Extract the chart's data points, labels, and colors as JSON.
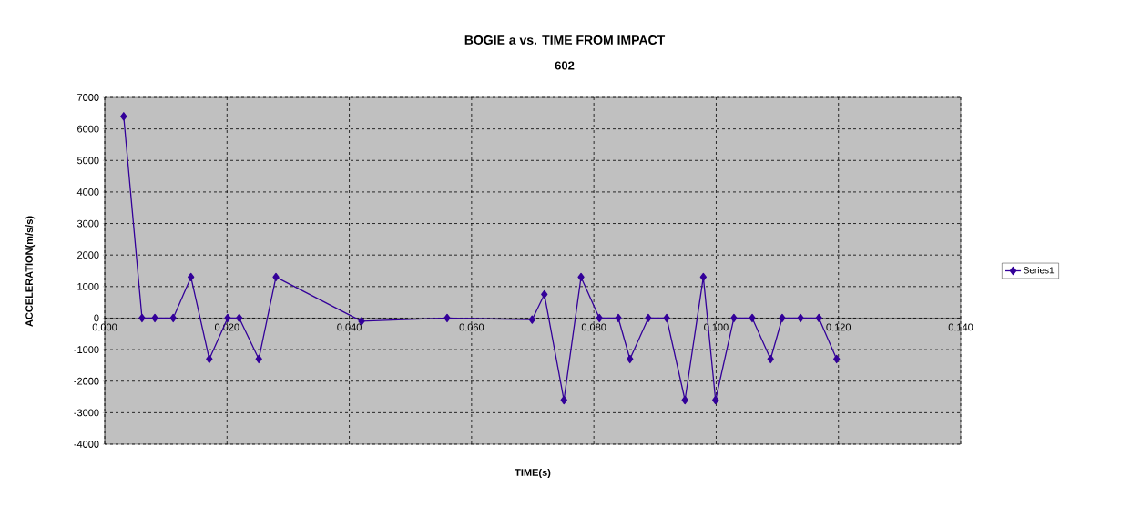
{
  "chart_data": {
    "type": "line",
    "title": "BOGIE a vs. TIME FROM IMPACT",
    "subtitle": "602",
    "xlabel": "TIME(s)",
    "ylabel": "ACCELERATION(m/s/s)",
    "series": [
      {
        "name": "Series1",
        "color": "#330099",
        "x": [
          0.0031,
          0.0061,
          0.0082,
          0.0112,
          0.0141,
          0.0171,
          0.0201,
          0.022,
          0.0252,
          0.028,
          0.042,
          0.056,
          0.0699,
          0.0719,
          0.0751,
          0.0779,
          0.0809,
          0.084,
          0.0859,
          0.0889,
          0.0919,
          0.0949,
          0.0979,
          0.0999,
          0.1029,
          0.1059,
          0.1089,
          0.1108,
          0.1138,
          0.1168,
          0.1197
        ],
        "values": [
          6400,
          0,
          0,
          0,
          1300,
          -1300,
          0,
          0,
          -1300,
          1300,
          -100,
          0,
          -50,
          750,
          -2600,
          1300,
          0,
          0,
          -1300,
          0,
          0,
          -2600,
          1300,
          -2600,
          0,
          0,
          -1300,
          0,
          0,
          0,
          -1300
        ]
      }
    ],
    "xlim": [
      0,
      0.14
    ],
    "xticks": [
      {
        "value": 0,
        "label": "0.000"
      },
      {
        "value": 0.02,
        "label": "0.020"
      },
      {
        "value": 0.04,
        "label": "0.040"
      },
      {
        "value": 0.06,
        "label": "0.060"
      },
      {
        "value": 0.08,
        "label": "0.080"
      },
      {
        "value": 0.1,
        "label": "0.100"
      },
      {
        "value": 0.12,
        "label": "0.120"
      },
      {
        "value": 0.14,
        "label": "0.140"
      }
    ],
    "ylim": [
      -4000,
      7000
    ],
    "yticks": [
      -4000,
      -3000,
      -2000,
      -1000,
      0,
      1000,
      2000,
      3000,
      4000,
      5000,
      6000,
      7000
    ],
    "grid": true,
    "legend": "right",
    "marker": "diamond",
    "line_style": "solid"
  }
}
